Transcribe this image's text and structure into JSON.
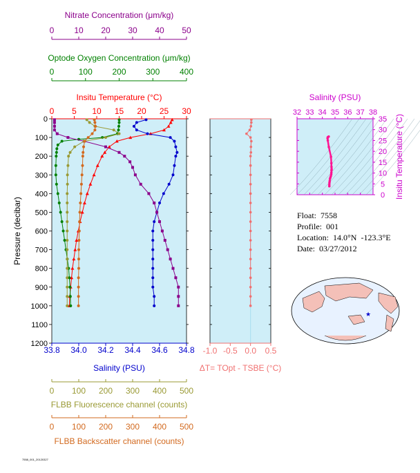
{
  "info": {
    "float": "Float:  7558",
    "profile": "Profile:  001",
    "location": "Location:  14.0°N  -123.3°E",
    "date": "Date:  03/27/2012"
  },
  "footer_text": "7558_001_20120327",
  "colors": {
    "temperature": "#ff0000",
    "salinity": "#0000cc",
    "oxygen": "#008000",
    "nitrate": "#8b008b",
    "fluorescence": "#999933",
    "backscatter": "#d2691e",
    "deltaT": "#f07070",
    "ts": "#ff1493",
    "panel_bg": "#cfeef8",
    "ts_axis": "#cc00cc",
    "axis_frame": "#808000"
  },
  "chart_data": [
    {
      "type": "line",
      "title": "",
      "ylabel": "Pressure (decibar)",
      "ylim": [
        1200,
        0
      ],
      "yticks": [
        0,
        100,
        200,
        300,
        400,
        500,
        600,
        700,
        800,
        900,
        1000,
        1100,
        1200
      ],
      "axes": {
        "nitrate": {
          "label": "Nitrate Concentration (μm/kg)",
          "lim": [
            0,
            50
          ],
          "ticks": [
            0,
            10,
            20,
            30,
            40,
            50
          ]
        },
        "oxygen": {
          "label": "Optode Oxygen Concentration (μm/kg)",
          "lim": [
            0,
            400
          ],
          "ticks": [
            0,
            100,
            200,
            300,
            400
          ]
        },
        "temperature": {
          "label": "Insitu Temperature (°C)",
          "lim": [
            0,
            30
          ],
          "ticks": [
            0,
            5,
            10,
            15,
            20,
            25,
            30
          ]
        },
        "salinity": {
          "label": "Salinity (PSU)",
          "lim": [
            33.8,
            34.8
          ],
          "ticks": [
            "33.8",
            "34.0",
            "34.2",
            "34.4",
            "34.6",
            "34.8"
          ]
        },
        "fluorescence": {
          "label": "FLBB Fluorescence channel (counts)",
          "lim": [
            0,
            500
          ],
          "ticks": [
            0,
            100,
            200,
            300,
            400,
            500
          ]
        },
        "backscatter": {
          "label": "FLBB Backscatter channel (counts)",
          "lim": [
            0,
            500
          ],
          "ticks": [
            0,
            100,
            200,
            300,
            400,
            500
          ]
        }
      },
      "series": [
        {
          "key": "temperature",
          "pressure": [
            5,
            20,
            40,
            60,
            80,
            100,
            120,
            150,
            180,
            200,
            250,
            300,
            350,
            400,
            450,
            500,
            550,
            600,
            650,
            700,
            750,
            800,
            850,
            900,
            950,
            1000
          ],
          "values": [
            26.8,
            26.5,
            26.0,
            25.0,
            22.0,
            17.5,
            14.5,
            12.8,
            11.8,
            11.2,
            10.2,
            9.4,
            8.6,
            7.9,
            7.3,
            6.8,
            6.3,
            5.9,
            5.5,
            5.2,
            4.9,
            4.6,
            4.4,
            4.2,
            4.0,
            3.9
          ]
        },
        {
          "key": "salinity",
          "pressure": [
            5,
            20,
            40,
            60,
            80,
            100,
            120,
            150,
            180,
            200,
            250,
            300,
            350,
            400,
            450,
            500,
            550,
            600,
            650,
            700,
            750,
            800,
            850,
            900,
            950,
            1000
          ],
          "values": [
            34.5,
            34.43,
            34.41,
            34.43,
            34.51,
            34.68,
            34.71,
            34.72,
            34.73,
            34.72,
            34.71,
            34.7,
            34.67,
            34.63,
            34.6,
            34.58,
            34.56,
            34.55,
            34.55,
            34.55,
            34.55,
            34.55,
            34.55,
            34.55,
            34.56,
            34.56
          ]
        },
        {
          "key": "oxygen",
          "pressure": [
            5,
            20,
            40,
            60,
            80,
            100,
            110,
            120,
            140,
            160,
            180,
            200,
            250,
            300,
            350,
            400,
            450,
            500,
            550,
            600,
            650,
            700,
            750,
            800,
            850,
            900,
            950,
            1000
          ],
          "values": [
            200,
            200,
            199,
            198,
            195,
            150,
            80,
            30,
            18,
            15,
            14,
            13,
            12,
            12,
            14,
            18,
            22,
            26,
            30,
            34,
            38,
            42,
            46,
            50,
            52,
            54,
            55,
            56
          ]
        },
        {
          "key": "nitrate",
          "pressure": [
            5,
            20,
            40,
            60,
            80,
            100,
            120,
            150,
            180,
            200,
            230,
            260,
            300,
            350,
            400,
            450,
            500,
            550,
            600,
            650,
            700,
            750,
            800,
            850,
            900,
            950,
            1000
          ],
          "values": [
            1,
            1,
            1,
            1,
            2,
            6,
            12,
            20,
            25,
            27,
            29,
            30,
            31,
            33,
            36,
            38,
            39,
            40,
            41,
            42,
            43,
            44,
            45,
            46,
            47,
            47,
            47
          ]
        },
        {
          "key": "fluorescence",
          "pressure": [
            5,
            20,
            40,
            60,
            80,
            100,
            120,
            150,
            180,
            200,
            250,
            300,
            350,
            400,
            450,
            500,
            550,
            600,
            650,
            700,
            750,
            800,
            850,
            900,
            950,
            1000
          ],
          "values": [
            130,
            140,
            160,
            230,
            250,
            200,
            120,
            85,
            68,
            62,
            60,
            58,
            58,
            57,
            57,
            57,
            57,
            57,
            57,
            57,
            57,
            57,
            57,
            57,
            57,
            57
          ]
        },
        {
          "key": "backscatter",
          "pressure": [
            5,
            20,
            40,
            60,
            80,
            100,
            120,
            150,
            180,
            200,
            250,
            300,
            350,
            400,
            450,
            500,
            550,
            600,
            650,
            700,
            750,
            800,
            850,
            900,
            950,
            1000
          ],
          "values": [
            158,
            160,
            162,
            160,
            150,
            135,
            122,
            118,
            116,
            115,
            114,
            112,
            110,
            108,
            106,
            104,
            103,
            102,
            101,
            100,
            100,
            100,
            99,
            99,
            99,
            99
          ]
        }
      ]
    },
    {
      "type": "scatter",
      "title": "",
      "xlabel": "ΔT= T^Opt - T^SBE (°C)",
      "xlim": [
        -1.0,
        0.5
      ],
      "xticks": [
        "-1.0",
        "-0.5",
        "0.0",
        "0.5"
      ],
      "ylim": [
        1200,
        0
      ],
      "pressure": [
        5,
        20,
        40,
        60,
        80,
        100,
        120,
        150,
        180,
        200,
        250,
        300,
        350,
        400,
        450,
        500,
        550,
        600,
        650,
        700,
        750,
        800,
        850,
        900,
        950,
        1000
      ],
      "values": [
        0.02,
        0.02,
        0.01,
        -0.02,
        -0.1,
        0.0,
        0.02,
        0.01,
        0.01,
        0.0,
        0.0,
        0.0,
        0.0,
        0.0,
        0.0,
        0.0,
        0.0,
        0.0,
        0.0,
        0.0,
        0.0,
        0.0,
        0.0,
        0.0,
        0.0,
        0.0
      ]
    },
    {
      "type": "scatter",
      "title": "",
      "xlabel": "Salinity (PSU)",
      "ylabel": "Insitu Temperature (°C)",
      "xlim": [
        32,
        38
      ],
      "xticks": [
        32,
        33,
        34,
        35,
        36,
        37,
        38
      ],
      "ylim": [
        0,
        35
      ],
      "yticks": [
        0,
        5,
        10,
        15,
        20,
        25,
        30,
        35
      ],
      "salinity": [
        34.55,
        34.55,
        34.56,
        34.58,
        34.6,
        34.63,
        34.67,
        34.7,
        34.71,
        34.72,
        34.73,
        34.72,
        34.71,
        34.68,
        34.51,
        34.43,
        34.41,
        34.43,
        34.5
      ],
      "temperature": [
        3.9,
        4.6,
        5.5,
        6.3,
        7.3,
        7.9,
        8.6,
        9.4,
        10.2,
        11.2,
        11.8,
        12.8,
        14.5,
        17.5,
        22.0,
        25.0,
        26.0,
        26.5,
        26.8
      ]
    }
  ]
}
